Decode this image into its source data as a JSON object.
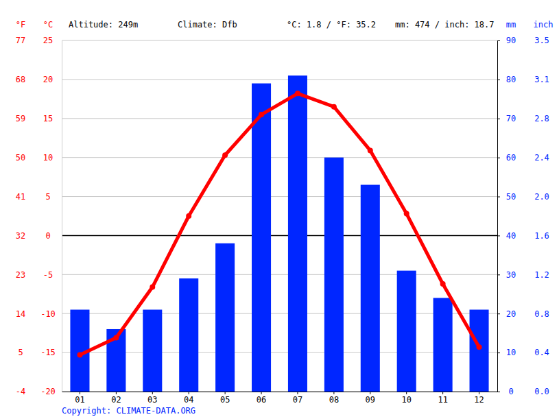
{
  "chart_data": {
    "type": "bar",
    "altitude_label": "Altitude: 249m",
    "climate_label": "Climate: Dfb",
    "temperature_summary": "°C: 1.8 / °F: 35.2",
    "precipitation_summary": "mm: 474 / inch: 18.7",
    "copyright": "Copyright: CLIMATE-DATA.ORG",
    "y_label": "°C",
    "y_f_label": "°F",
    "y2_label": "mm",
    "y2_inch_label": "inch",
    "categories": [
      "01",
      "02",
      "03",
      "04",
      "05",
      "06",
      "07",
      "08",
      "09",
      "10",
      "11",
      "12"
    ],
    "ylim": [
      -20,
      25
    ],
    "yticks": [
      -20,
      -15,
      -10,
      -5,
      0,
      5,
      10,
      15,
      20,
      25
    ],
    "y_f_ticks": [
      {
        "value": -20,
        "label": "-4"
      },
      {
        "value": -15,
        "label": "5"
      },
      {
        "value": -10,
        "label": "14"
      },
      {
        "value": -5,
        "label": "23"
      },
      {
        "value": 0,
        "label": "32"
      },
      {
        "value": 5,
        "label": "41"
      },
      {
        "value": 10,
        "label": "50"
      },
      {
        "value": 15,
        "label": "59"
      },
      {
        "value": 20,
        "label": "68"
      },
      {
        "value": 25,
        "label": "77"
      }
    ],
    "y2lim": [
      0,
      90
    ],
    "y2ticks": [
      0,
      10,
      20,
      30,
      40,
      50,
      60,
      70,
      80,
      90
    ],
    "y2_inch_ticks": [
      {
        "value": 0,
        "label": "0.0"
      },
      {
        "value": 10,
        "label": "0.4"
      },
      {
        "value": 20,
        "label": "0.8"
      },
      {
        "value": 30,
        "label": "1.2"
      },
      {
        "value": 40,
        "label": "1.6"
      },
      {
        "value": 50,
        "label": "2.0"
      },
      {
        "value": 60,
        "label": "2.4"
      },
      {
        "value": 70,
        "label": "2.8"
      },
      {
        "value": 80,
        "label": "3.1"
      },
      {
        "value": 90,
        "label": "3.5"
      }
    ],
    "grid": true,
    "series": [
      {
        "type": "bar",
        "axis": "y2",
        "color": "#0026ff",
        "values": [
          21,
          16,
          21,
          29,
          38,
          79,
          81,
          60,
          53,
          31,
          24,
          21
        ]
      },
      {
        "type": "line",
        "color": "#ff0000",
        "marker": "circle",
        "values": [
          -15.3,
          -13.1,
          -6.6,
          2.5,
          10.3,
          15.5,
          18.2,
          16.5,
          10.9,
          2.8,
          -6.2,
          -14.3
        ]
      }
    ]
  }
}
